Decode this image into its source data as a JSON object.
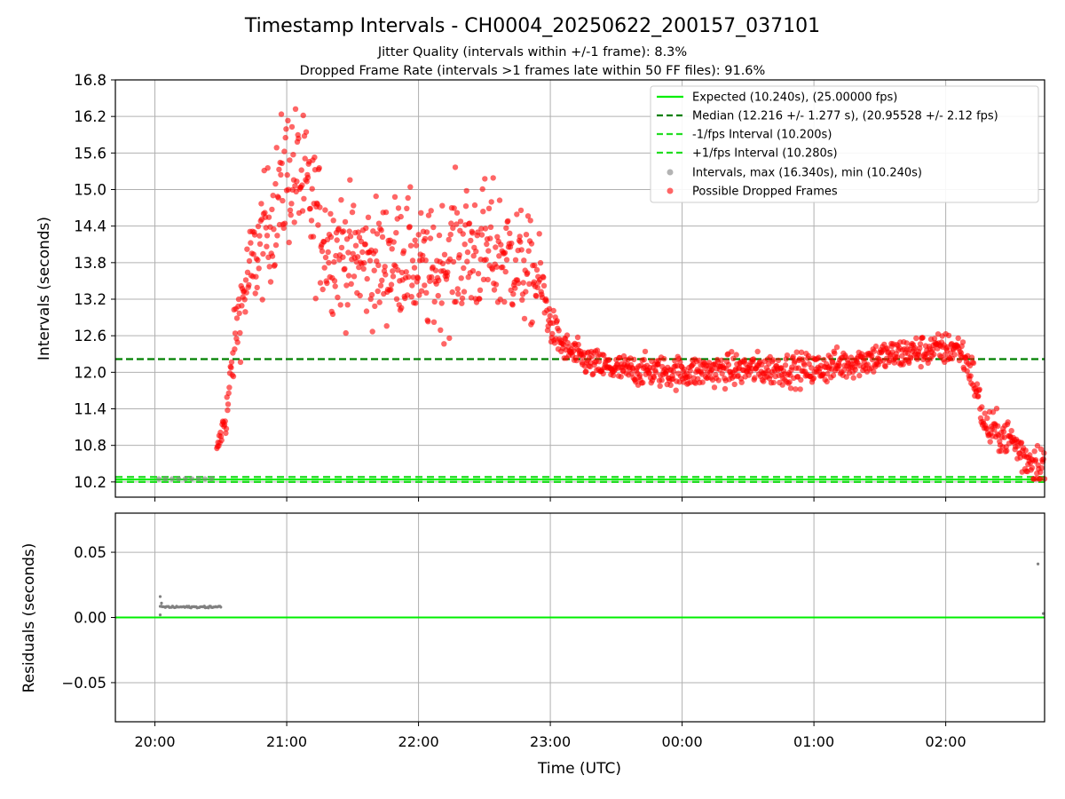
{
  "title": "Timestamp Intervals - CH0004_20250622_200157_037101",
  "subtitle1": "Jitter Quality (intervals within +/-1 frame): 8.3%",
  "subtitle2": "Dropped Frame Rate (intervals >1 frames late within 50 FF files): 91.6%",
  "colors": {
    "expected": "#00ee00",
    "median": "#008000",
    "fps_interval": "#22dd22",
    "dropped": "#ff0000",
    "intervals": "#808080",
    "grid": "#b0b0b0"
  },
  "chart_data": [
    {
      "type": "scatter",
      "ylabel": "Intervals (seconds)",
      "ylim": [
        9.95,
        16.8
      ],
      "yticks": [
        "10.2",
        "10.8",
        "11.4",
        "12.0",
        "12.6",
        "13.2",
        "13.8",
        "14.4",
        "15.0",
        "15.6",
        "16.2",
        "16.8"
      ],
      "x_axis_hours": [
        19.7,
        26.75
      ],
      "grid": true,
      "legend_position": "upper right",
      "legend": [
        "Expected (10.240s), (25.00000 fps)",
        "Median (12.216 +/- 1.277 s), (20.95528 +/- 2.12 fps)",
        "-1/fps Interval (10.200s)",
        "+1/fps Interval (10.280s)",
        "Intervals, max (16.340s), min (10.240s)",
        "Possible Dropped Frames"
      ],
      "reference_lines": {
        "expected": 10.24,
        "median": 12.216,
        "minus_fps": 10.2,
        "plus_fps": 10.28
      },
      "series": [
        {
          "name": "Intervals, max (16.340s), min (10.240s)",
          "x_hours": [
            20.03,
            20.08,
            20.13,
            20.18,
            20.23,
            20.28,
            20.33,
            20.38,
            20.43
          ],
          "y": [
            10.25,
            10.25,
            10.25,
            10.25,
            10.25,
            10.25,
            10.25,
            10.25,
            10.25
          ]
        },
        {
          "name": "Possible Dropped Frames",
          "profile_x_hours": [
            20.47,
            20.55,
            20.62,
            20.7,
            20.8,
            20.9,
            21.0,
            21.1,
            21.2,
            21.3,
            21.5,
            21.7,
            21.9,
            22.0,
            22.1,
            22.3,
            22.5,
            22.7,
            22.8,
            22.92,
            23.0,
            23.1,
            23.3,
            23.5,
            24.0,
            24.5,
            25.0,
            25.5,
            25.8,
            26.1,
            26.2,
            26.3,
            26.5,
            26.6,
            26.75
          ],
          "profile_y": [
            10.7,
            11.4,
            12.8,
            13.5,
            14.1,
            14.6,
            15.3,
            15.2,
            14.7,
            14.1,
            13.9,
            13.8,
            13.95,
            13.7,
            13.6,
            14.0,
            14.0,
            13.9,
            13.7,
            13.5,
            12.8,
            12.4,
            12.15,
            12.05,
            12.0,
            12.05,
            12.05,
            12.25,
            12.35,
            12.4,
            12.0,
            11.1,
            10.9,
            10.6,
            10.5
          ],
          "spread_y": [
            0.05,
            0.2,
            0.3,
            0.4,
            0.45,
            0.5,
            0.6,
            0.55,
            0.55,
            0.5,
            0.5,
            0.5,
            0.5,
            0.45,
            0.5,
            0.55,
            0.55,
            0.5,
            0.45,
            0.35,
            0.15,
            0.13,
            0.12,
            0.12,
            0.13,
            0.13,
            0.13,
            0.13,
            0.13,
            0.13,
            0.15,
            0.15,
            0.15,
            0.18,
            0.18
          ],
          "count": 1400
        }
      ]
    },
    {
      "type": "scatter",
      "ylabel": "Residuals (seconds)",
      "xlabel": "Time (UTC)",
      "ylim": [
        -0.08,
        0.08
      ],
      "yticks": [
        "0.05",
        "0.00",
        "−0.05"
      ],
      "ytick_values": [
        0.05,
        0.0,
        -0.05
      ],
      "xticks": [
        "20:00",
        "21:00",
        "22:00",
        "23:00",
        "00:00",
        "01:00",
        "02:00"
      ],
      "xtick_hours": [
        20,
        21,
        22,
        23,
        24,
        25,
        26
      ],
      "grid": true,
      "zero_line": 0.0,
      "series": [
        {
          "name": "residuals",
          "cluster_x_hours": [
            20.04,
            20.5
          ],
          "cluster_y": 0.008,
          "outliers": [
            {
              "x_hours": 20.04,
              "y": 0.016
            },
            {
              "x_hours": 20.04,
              "y": 0.002
            },
            {
              "x_hours": 20.05,
              "y": 0.011
            },
            {
              "x_hours": 26.7,
              "y": 0.041
            },
            {
              "x_hours": 26.74,
              "y": 0.003
            }
          ]
        }
      ]
    }
  ]
}
